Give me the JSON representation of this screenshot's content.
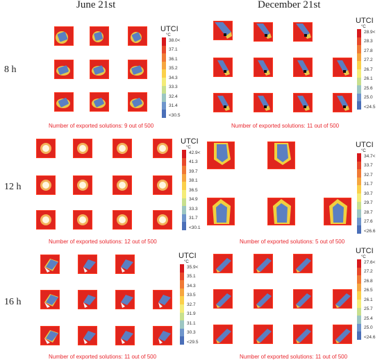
{
  "columns": [
    "June 21st",
    "December 21st"
  ],
  "rows": [
    "8 h",
    "12 h",
    "16 h"
  ],
  "legend_title": "UTCI",
  "legend_unit": "°C",
  "captions": {
    "june_8": "Number of exported solutions: 9 out of 500",
    "dec_8": "Number of exported solutions: 11 out of 500",
    "june_12": "Number of exported solutions: 12 out of 500",
    "dec_12": "Number of exported solutions: 5 out of 500",
    "june_16": "Number of exported solutions: 11 out of 500",
    "dec_16": "Number of exported solutions: 11 out of 500"
  },
  "legends": {
    "june_8": [
      "38.0<",
      "37.1",
      "36.1",
      "35.2",
      "34.3",
      "33.3",
      "32.4",
      "31.4",
      "<30.5"
    ],
    "dec_8": [
      "28.9<",
      "28.3",
      "27.8",
      "27.2",
      "26.7",
      "26.1",
      "25.6",
      "25.0",
      "<24.5"
    ],
    "june_12": [
      "42.9<",
      "41.3",
      "39.7",
      "38.1",
      "36.5",
      "34.9",
      "33.3",
      "31.7",
      "<30.1"
    ],
    "dec_12": [
      "34.7<",
      "33.7",
      "32.7",
      "31.7",
      "30.7",
      "29.7",
      "28.7",
      "27.6",
      "<26.6"
    ],
    "june_16": [
      "35.9<",
      "35.1",
      "34.3",
      "33.5",
      "32.7",
      "31.9",
      "31.1",
      "30.3",
      "<29.5"
    ],
    "dec_16": [
      "27.6<",
      "27.2",
      "26.8",
      "26.5",
      "26.1",
      "25.7",
      "25.4",
      "25.0",
      "<24.6"
    ]
  },
  "colors": {
    "scale": [
      "#d7191c",
      "#e8492b",
      "#f07a35",
      "#f6a63f",
      "#fbd04a",
      "#f4ec78",
      "#c8e08e",
      "#9cc6c2",
      "#6e95cc",
      "#4b6fb8"
    ],
    "tile_red": "#e0251d",
    "caption": "#e8262d"
  }
}
